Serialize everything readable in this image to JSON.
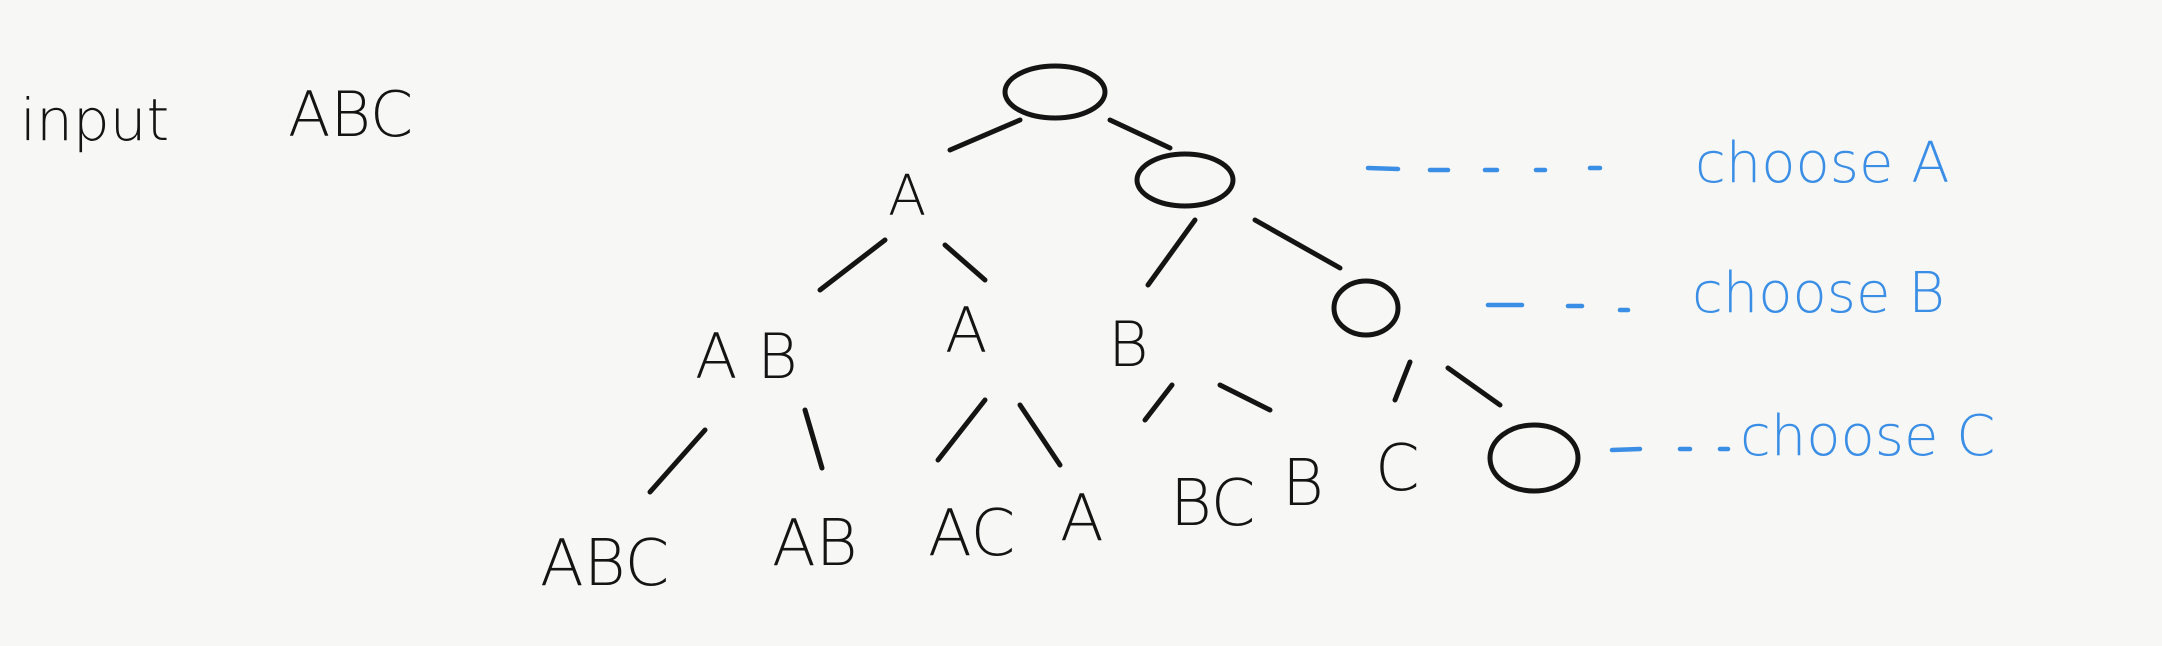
{
  "input": {
    "label": "input",
    "value": "ABC"
  },
  "levels": {
    "level1": [
      "A"
    ],
    "level2": [
      "A B",
      "A",
      "B"
    ],
    "leaves": [
      "ABC",
      "AB",
      "AC",
      "A",
      "BC",
      "B",
      "C"
    ]
  },
  "annotations": [
    "choose A",
    "choose B",
    "choose C"
  ],
  "colors": {
    "ink": "#141414",
    "annotation": "#3b8ee6",
    "paper": "#f7f7f5"
  }
}
